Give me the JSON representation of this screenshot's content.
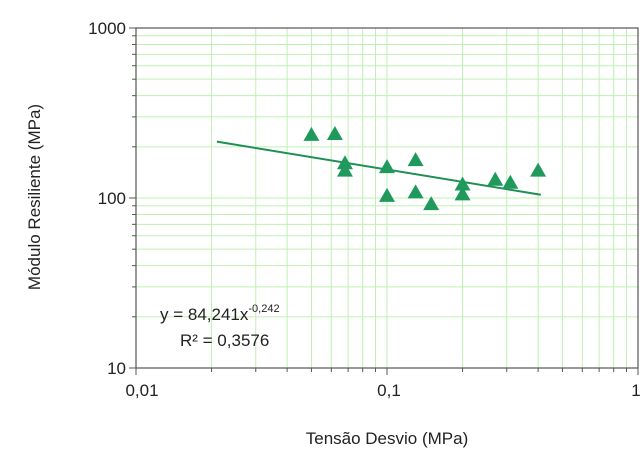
{
  "chart_data": {
    "type": "scatter",
    "x_scale": "log",
    "y_scale": "log",
    "xlabel": "Tensão Desvio (MPa)",
    "ylabel": "Módulo Resiliente (MPa)",
    "xlim": [
      0.01,
      1
    ],
    "ylim": [
      10,
      1000
    ],
    "x_tick_labels": [
      "0,01",
      "0,1",
      "1"
    ],
    "y_tick_labels": [
      "10",
      "100",
      "1000"
    ],
    "grid": true,
    "colors": {
      "grid": "#bff0b2",
      "axis": "#555555",
      "marker": "#1f9a5c",
      "trendline": "#1f8f55"
    },
    "points": [
      {
        "x": 0.05,
        "y": 235
      },
      {
        "x": 0.062,
        "y": 238
      },
      {
        "x": 0.068,
        "y": 160
      },
      {
        "x": 0.068,
        "y": 145
      },
      {
        "x": 0.1,
        "y": 152
      },
      {
        "x": 0.1,
        "y": 103
      },
      {
        "x": 0.13,
        "y": 167
      },
      {
        "x": 0.13,
        "y": 108
      },
      {
        "x": 0.15,
        "y": 92
      },
      {
        "x": 0.2,
        "y": 120
      },
      {
        "x": 0.2,
        "y": 105
      },
      {
        "x": 0.27,
        "y": 128
      },
      {
        "x": 0.31,
        "y": 123
      },
      {
        "x": 0.4,
        "y": 145
      }
    ],
    "trendline": {
      "coefficient": 84.241,
      "exponent": -0.242,
      "x_range": [
        0.021,
        0.41
      ]
    },
    "equation_label": "y = 84,241x",
    "equation_exponent": "-0,242",
    "r2_label": "R² = 0,3576"
  }
}
